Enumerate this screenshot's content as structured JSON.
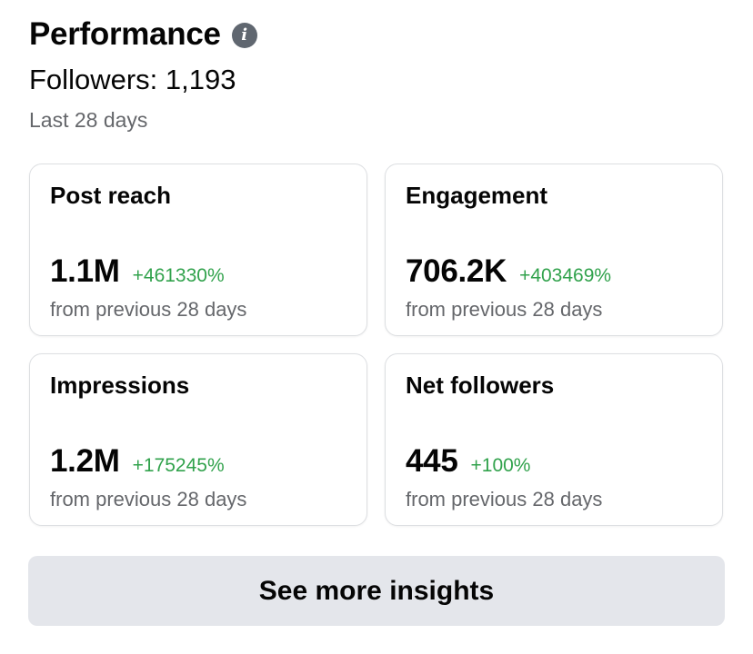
{
  "header": {
    "title": "Performance",
    "info_icon": "info-icon",
    "info_glyph": "i",
    "followers": "Followers: 1,193",
    "period": "Last 28 days"
  },
  "colors": {
    "positive_change": "#31a24c",
    "secondary_text": "#65676b",
    "button_bg": "#e4e6eb"
  },
  "cards": [
    {
      "title": "Post reach",
      "value": "1.1M",
      "change": "+461330%",
      "subtitle": "from previous 28 days"
    },
    {
      "title": "Engagement",
      "value": "706.2K",
      "change": "+403469%",
      "subtitle": "from previous 28 days"
    },
    {
      "title": "Impressions",
      "value": "1.2M",
      "change": "+175245%",
      "subtitle": "from previous 28 days"
    },
    {
      "title": "Net followers",
      "value": "445",
      "change": "+100%",
      "subtitle": "from previous 28 days"
    }
  ],
  "cta": {
    "label": "See more insights"
  }
}
